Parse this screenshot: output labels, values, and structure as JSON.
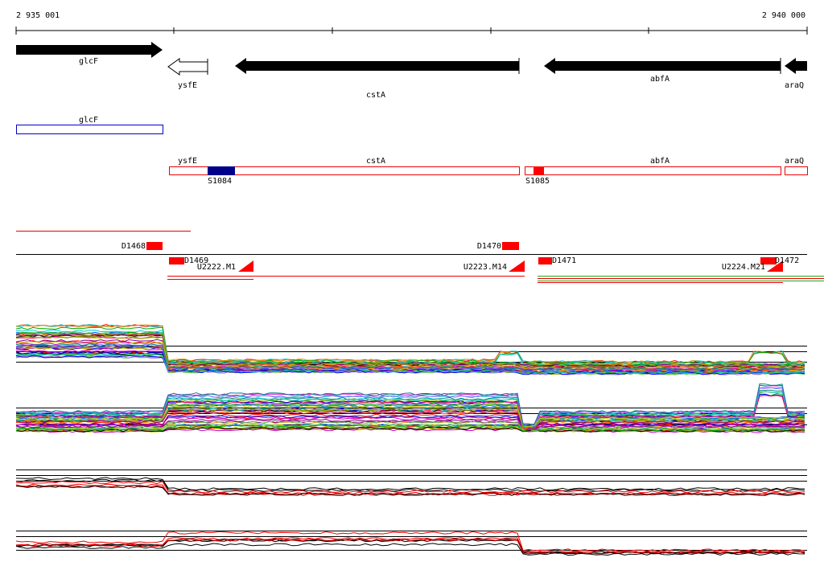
{
  "ruler": {
    "start": "2 935 001",
    "end": "2 940 000"
  },
  "genes": [
    {
      "label": "glcF"
    },
    {
      "label": "ysfE"
    },
    {
      "label": "cstA"
    },
    {
      "label": "abfA"
    },
    {
      "label": "araQ"
    }
  ],
  "operon": {
    "label": "glcF"
  },
  "transcripts": {
    "labels": [
      "ysfE",
      "cstA",
      "abfA",
      "araQ"
    ],
    "sites": [
      "S1084",
      "S1085"
    ]
  },
  "features": {
    "boxes": [
      "D1468",
      "D1469",
      "D1470",
      "D1471",
      "D1472"
    ],
    "motifs": [
      "U2222.M1",
      "U2223.M14",
      "U2224.M21"
    ]
  }
}
